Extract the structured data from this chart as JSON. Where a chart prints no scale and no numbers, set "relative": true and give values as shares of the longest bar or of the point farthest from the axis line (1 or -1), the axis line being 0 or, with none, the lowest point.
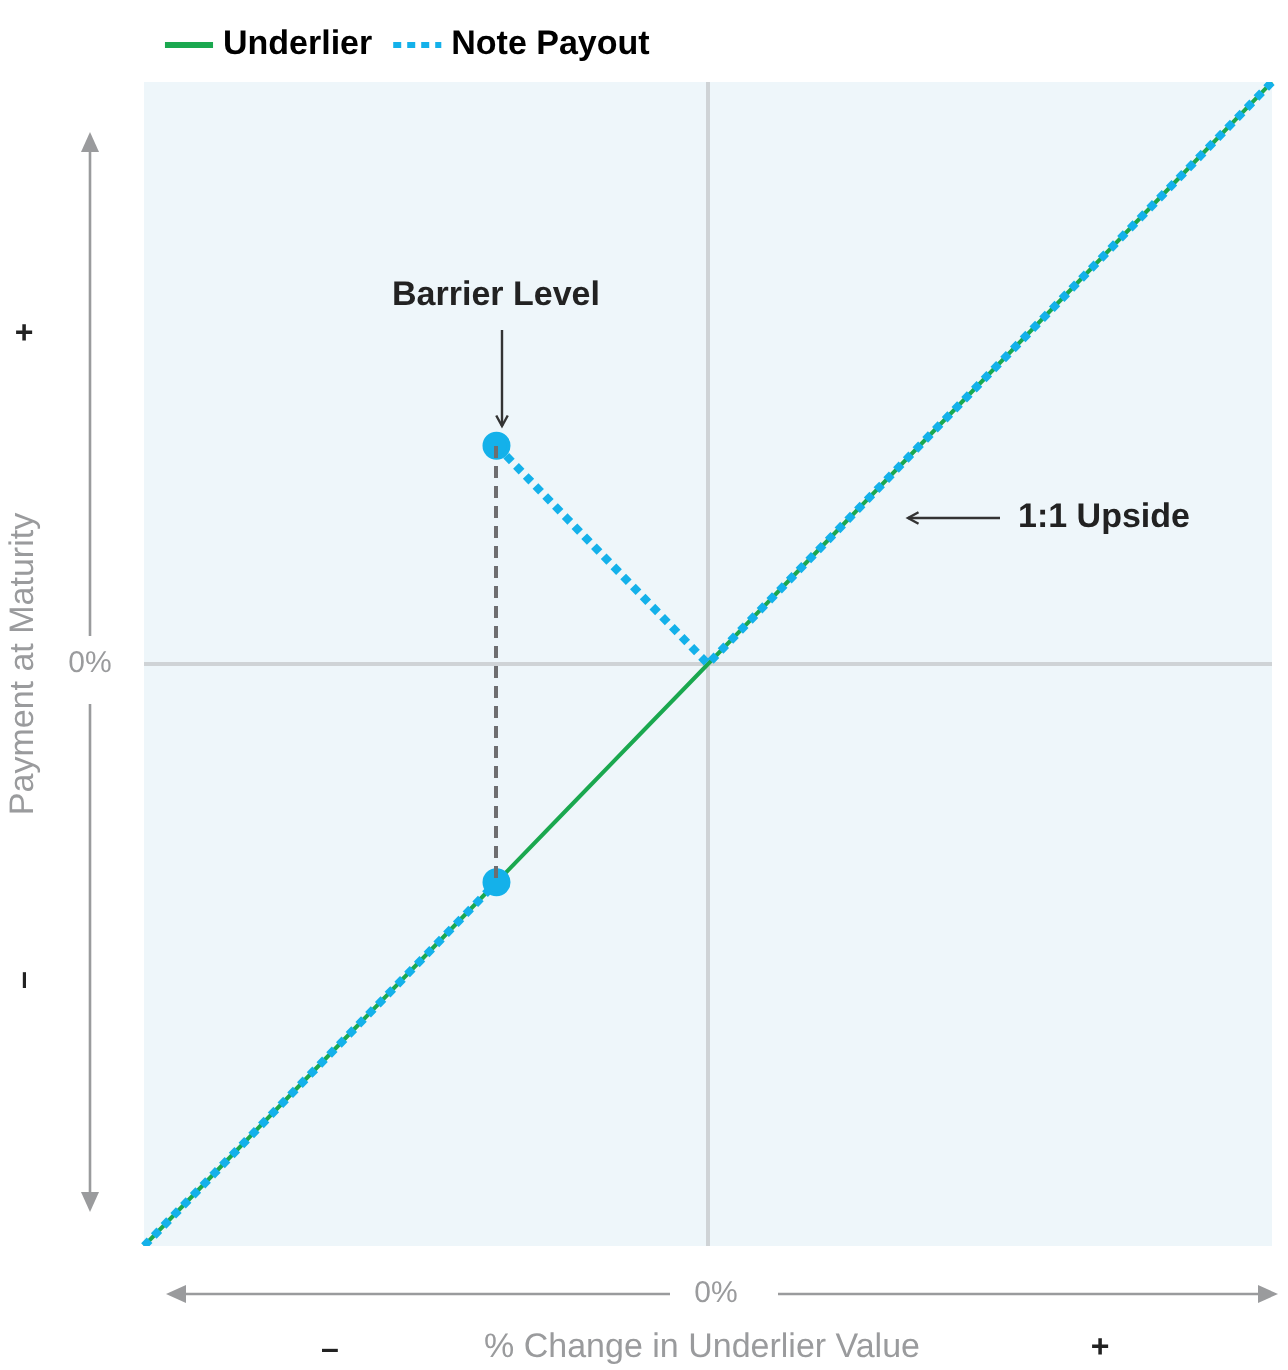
{
  "chart_data": {
    "type": "line",
    "relative": true,
    "xlabel": "% Change in Underlier Value",
    "ylabel": "Payment at Maturity",
    "legend": "top left",
    "categories": [
      null,
      null,
      null,
      null,
      null,
      null,
      null,
      null,
      null,
      null,
      null,
      null,
      null,
      null,
      null,
      null,
      null
    ],
    "series": [
      {
        "name": "Underlier",
        "color": "#1aa84f",
        "line_style": "solid",
        "values": [
          -1,
          -0.875,
          -0.75,
          -0.625,
          -0.5,
          -0.375,
          -0.25,
          -0.125,
          0,
          0.125,
          0.25,
          0.375,
          0.5,
          0.625,
          0.75,
          0.875,
          1
        ]
      },
      {
        "name": "Note Payout",
        "color": "#14b1ea",
        "line_style": "dotted",
        "values": [
          null,
          null,
          null,
          null,
          null,
          0.375,
          0.25,
          0.125,
          0,
          0.125,
          0.25,
          0.375,
          0.5,
          0.625,
          0.75,
          0.875,
          1
        ]
      },
      {
        "color": "#14b1ea",
        "line_style": "dotted",
        "values": [
          -1,
          -0.875,
          -0.75,
          -0.625,
          -0.5,
          -0.375,
          null,
          null,
          null,
          null,
          null,
          null,
          null,
          null,
          null,
          null,
          null
        ]
      },
      {
        "type": "line",
        "color": "#14b1ea",
        "marker": "circle",
        "values": [
          null,
          null,
          null,
          null,
          null,
          0.375,
          null,
          null,
          null,
          null,
          null,
          null,
          null,
          null,
          null,
          null,
          null
        ]
      },
      {
        "type": "line",
        "color": "#14b1ea",
        "marker": "circle",
        "values": [
          null,
          null,
          null,
          null,
          null,
          -0.375,
          null,
          null,
          null,
          null,
          null,
          null,
          null,
          null,
          null,
          null,
          null
        ]
      }
    ],
    "ref_lines": [
      {
        "axis": "y",
        "value": 0,
        "label": "0%",
        "color": "#cfd3d6"
      }
    ],
    "annotations": [
      "Barrier Level",
      "1:1 Upside",
      "+",
      "–",
      "–",
      "+",
      "0%"
    ]
  }
}
